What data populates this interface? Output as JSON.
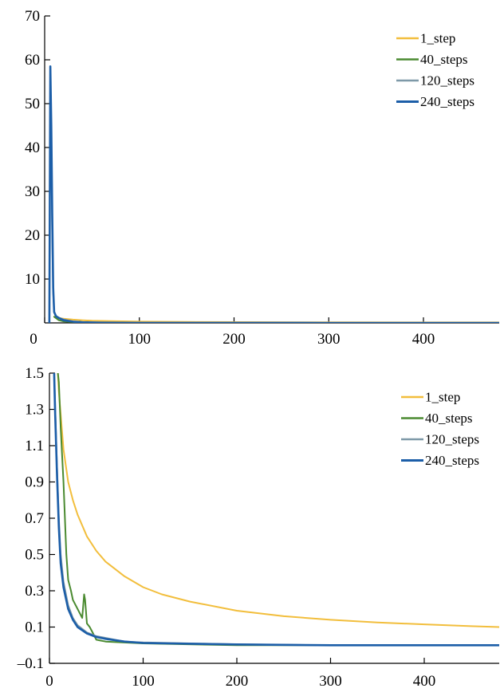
{
  "chart_data": [
    {
      "type": "line",
      "title": "",
      "xlabel": "",
      "ylabel": "",
      "xlim": [
        0,
        480
      ],
      "ylim": [
        0,
        70
      ],
      "x_ticks": [
        0,
        100,
        200,
        300,
        400
      ],
      "y_ticks": [
        10,
        20,
        30,
        40,
        50,
        60,
        70
      ],
      "grid": false,
      "legend": "top-right",
      "series": [
        {
          "name": "1_step",
          "color": "#f2be3c",
          "x": [
            10,
            15,
            20,
            30,
            40,
            50,
            60,
            70,
            100,
            150,
            160,
            200,
            300,
            400,
            480
          ],
          "y": [
            1.4,
            1.1,
            0.95,
            0.75,
            0.6,
            0.5,
            0.45,
            0.4,
            0.3,
            0.22,
            0.2,
            0.18,
            0.13,
            0.11,
            0.1
          ]
        },
        {
          "name": "40_steps",
          "color": "#4a8a30",
          "x": [
            10,
            15,
            20,
            25,
            30,
            35,
            37,
            40,
            45,
            50
          ],
          "y": [
            1.4,
            0.6,
            0.35,
            0.25,
            0.2,
            0.15,
            0.28,
            0.12,
            0.08,
            0.03
          ]
        },
        {
          "name": "120_steps",
          "color": "#7e99a8",
          "x": [
            6,
            7,
            8,
            9,
            10,
            12,
            15,
            20,
            30,
            40
          ],
          "y": [
            58,
            40,
            20,
            7,
            2.5,
            1.6,
            1.2,
            0.8,
            0.3,
            0.1
          ]
        },
        {
          "name": "240_steps",
          "color": "#1c5ea8",
          "x": [
            5,
            6,
            7,
            8,
            9,
            10,
            12,
            15,
            20,
            30,
            40,
            60,
            100,
            200,
            300,
            400,
            480
          ],
          "y": [
            0,
            58.5,
            45,
            25,
            8,
            2.5,
            1.5,
            1.1,
            0.6,
            0.3,
            0.15,
            0.05,
            0.02,
            0.01,
            0,
            0,
            0
          ]
        }
      ]
    },
    {
      "type": "line",
      "title": "",
      "xlabel": "",
      "ylabel": "",
      "xlim": [
        0,
        480
      ],
      "ylim": [
        -0.1,
        1.5
      ],
      "x_ticks": [
        0,
        100,
        200,
        300,
        400
      ],
      "y_ticks": [
        -0.1,
        0.1,
        0.3,
        0.5,
        0.7,
        0.9,
        1.1,
        1.3,
        1.5
      ],
      "y_tick_labels": [
        "–0.1",
        "0.1",
        "0.3",
        "0.5",
        "0.7",
        "0.9",
        "1.1",
        "1.3",
        "1.5"
      ],
      "grid": false,
      "legend": "top-right",
      "series": [
        {
          "name": "1_step",
          "color": "#f2be3c",
          "x": [
            9,
            10,
            15,
            20,
            25,
            30,
            40,
            50,
            60,
            70,
            80,
            100,
            120,
            150,
            200,
            250,
            300,
            350,
            400,
            450,
            480
          ],
          "y": [
            1.5,
            1.4,
            1.08,
            0.9,
            0.8,
            0.72,
            0.6,
            0.52,
            0.46,
            0.42,
            0.38,
            0.32,
            0.28,
            0.24,
            0.19,
            0.16,
            0.14,
            0.125,
            0.115,
            0.105,
            0.1
          ]
        },
        {
          "name": "40_steps",
          "color": "#4a8a30",
          "x": [
            9,
            10,
            12,
            15,
            18,
            20,
            23,
            25,
            30,
            35,
            37,
            38,
            40,
            43,
            45,
            50,
            60,
            100,
            200,
            300,
            400,
            480
          ],
          "y": [
            1.5,
            1.45,
            1.2,
            0.9,
            0.5,
            0.36,
            0.3,
            0.25,
            0.2,
            0.15,
            0.28,
            0.25,
            0.12,
            0.1,
            0.08,
            0.03,
            0.02,
            0.01,
            0,
            0,
            0,
            0
          ]
        },
        {
          "name": "120_steps",
          "color": "#7e99a8",
          "x": [
            5,
            6,
            8,
            10,
            12,
            15,
            20,
            25,
            30,
            40,
            50,
            60,
            80,
            100,
            150,
            200,
            300,
            400,
            480
          ],
          "y": [
            1.5,
            1.35,
            1.0,
            0.7,
            0.5,
            0.35,
            0.22,
            0.15,
            0.11,
            0.07,
            0.05,
            0.04,
            0.02,
            0.015,
            0.01,
            0.005,
            0,
            0,
            0
          ]
        },
        {
          "name": "240_steps",
          "color": "#1c5ea8",
          "x": [
            5,
            6,
            8,
            10,
            12,
            15,
            20,
            25,
            30,
            40,
            50,
            60,
            80,
            100,
            150,
            200,
            300,
            400,
            480
          ],
          "y": [
            1.5,
            1.3,
            0.95,
            0.65,
            0.45,
            0.32,
            0.2,
            0.14,
            0.1,
            0.065,
            0.045,
            0.035,
            0.02,
            0.012,
            0.008,
            0.004,
            0,
            0,
            0
          ]
        }
      ]
    }
  ]
}
